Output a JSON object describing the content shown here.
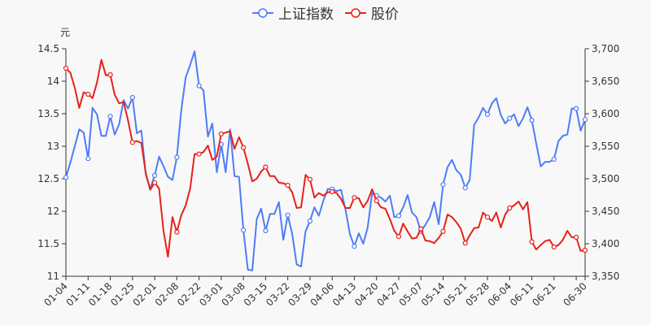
{
  "chart_data": {
    "type": "line",
    "unit_left": "元",
    "legend_position": "top",
    "grid": false,
    "left_axis": {
      "min": 11,
      "max": 14.5,
      "ticks": [
        "11",
        "11.5",
        "12",
        "12.5",
        "13",
        "13.5",
        "14",
        "14.5"
      ]
    },
    "right_axis": {
      "min": 3350,
      "max": 3700,
      "ticks": [
        "3,350",
        "3,400",
        "3,450",
        "3,500",
        "3,550",
        "3,600",
        "3,650",
        "3,700"
      ]
    },
    "x": [
      "01-04",
      "01-05",
      "01-06",
      "01-07",
      "01-08",
      "01-11",
      "01-12",
      "01-13",
      "01-14",
      "01-15",
      "01-18",
      "01-19",
      "01-20",
      "01-21",
      "01-22",
      "01-25",
      "01-26",
      "01-27",
      "01-28",
      "01-29",
      "02-01",
      "02-02",
      "02-03",
      "02-04",
      "02-05",
      "02-08",
      "02-09",
      "02-10",
      "02-18",
      "02-19",
      "02-22",
      "02-23",
      "02-24",
      "02-25",
      "02-26",
      "03-01",
      "03-02",
      "03-03",
      "03-04",
      "03-05",
      "03-08",
      "03-09",
      "03-10",
      "03-11",
      "03-12",
      "03-15",
      "03-16",
      "03-17",
      "03-18",
      "03-19",
      "03-22",
      "03-23",
      "03-24",
      "03-25",
      "03-26",
      "03-29",
      "03-30",
      "03-31",
      "04-01",
      "04-02",
      "04-06",
      "04-07",
      "04-08",
      "04-09",
      "04-12",
      "04-13",
      "04-14",
      "04-15",
      "04-16",
      "04-19",
      "04-20",
      "04-21",
      "04-22",
      "04-23",
      "04-26",
      "04-27",
      "04-28",
      "04-29",
      "04-30",
      "05-06",
      "05-07",
      "05-10",
      "05-11",
      "05-12",
      "05-13",
      "05-14",
      "05-17",
      "05-18",
      "05-19",
      "05-20",
      "05-21",
      "05-24",
      "05-25",
      "05-26",
      "05-27",
      "05-28",
      "05-31",
      "06-01",
      "06-02",
      "06-03",
      "06-04",
      "06-07",
      "06-08",
      "06-09",
      "06-10",
      "06-11",
      "06-15",
      "06-16",
      "06-17",
      "06-18",
      "06-21",
      "06-22",
      "06-23",
      "06-24",
      "06-25",
      "06-28",
      "06-29",
      "06-30"
    ],
    "x_tick_labels": [
      "01-04",
      "01-11",
      "01-18",
      "01-25",
      "02-01",
      "02-08",
      "02-22",
      "03-01",
      "03-08",
      "03-15",
      "03-22",
      "03-29",
      "04-06",
      "04-13",
      "04-20",
      "04-27",
      "05-07",
      "05-14",
      "05-21",
      "05-28",
      "06-04",
      "06-11",
      "06-21",
      "06-30"
    ],
    "series": [
      {
        "name": "上证指数",
        "axis": "right",
        "color": "#4f7cf7",
        "values": [
          3502,
          3525,
          3550,
          3576,
          3571,
          3531,
          3609,
          3599,
          3566,
          3566,
          3596,
          3568,
          3584,
          3621,
          3608,
          3625,
          3570,
          3574,
          3506,
          3485,
          3505,
          3534,
          3519,
          3503,
          3498,
          3533,
          3606,
          3656,
          3675,
          3696,
          3643,
          3636,
          3565,
          3585,
          3510,
          3553,
          3510,
          3576,
          3504,
          3503,
          3421,
          3360,
          3359,
          3438,
          3454,
          3420,
          3446,
          3446,
          3464,
          3406,
          3444,
          3415,
          3368,
          3365,
          3419,
          3435,
          3456,
          3443,
          3466,
          3484,
          3484,
          3481,
          3483,
          3453,
          3415,
          3396,
          3416,
          3400,
          3425,
          3478,
          3474,
          3471,
          3465,
          3474,
          3441,
          3443,
          3456,
          3475,
          3448,
          3441,
          3419,
          3429,
          3441,
          3464,
          3430,
          3491,
          3518,
          3529,
          3513,
          3506,
          3486,
          3498,
          3583,
          3594,
          3609,
          3599,
          3616,
          3624,
          3598,
          3585,
          3593,
          3599,
          3581,
          3593,
          3610,
          3590,
          3554,
          3519,
          3526,
          3526,
          3530,
          3558,
          3566,
          3568,
          3608,
          3608,
          3574,
          3591
        ]
      },
      {
        "name": "股价",
        "axis": "left",
        "color": "#e8211b",
        "values": [
          14.2,
          14.13,
          13.9,
          13.59,
          13.83,
          13.8,
          13.74,
          13.98,
          14.33,
          14.09,
          14.1,
          13.79,
          13.66,
          13.68,
          13.4,
          13.06,
          13.08,
          13.05,
          12.58,
          12.33,
          12.44,
          12.35,
          11.69,
          11.3,
          11.91,
          11.68,
          11.94,
          12.09,
          12.35,
          12.88,
          12.88,
          12.91,
          13.01,
          12.79,
          12.84,
          13.19,
          13.21,
          13.23,
          12.96,
          13.14,
          12.98,
          12.73,
          12.46,
          12.5,
          12.61,
          12.68,
          12.54,
          12.54,
          12.44,
          12.43,
          12.4,
          12.29,
          12.05,
          12.06,
          12.56,
          12.49,
          12.21,
          12.28,
          12.24,
          12.29,
          12.3,
          12.28,
          12.19,
          12.05,
          12.05,
          12.21,
          12.2,
          12.06,
          12.16,
          12.34,
          12.16,
          12.06,
          12.04,
          11.88,
          11.7,
          11.61,
          11.81,
          11.69,
          11.58,
          11.59,
          11.73,
          11.55,
          11.54,
          11.51,
          11.59,
          11.69,
          11.95,
          11.91,
          11.83,
          11.73,
          11.51,
          11.63,
          11.74,
          11.75,
          11.98,
          11.91,
          11.85,
          11.98,
          11.75,
          11.95,
          12.05,
          12.09,
          12.15,
          12.03,
          12.14,
          11.53,
          11.41,
          11.48,
          11.54,
          11.56,
          11.45,
          11.48,
          11.56,
          11.7,
          11.6,
          11.6,
          11.39,
          11.4
        ]
      }
    ]
  }
}
